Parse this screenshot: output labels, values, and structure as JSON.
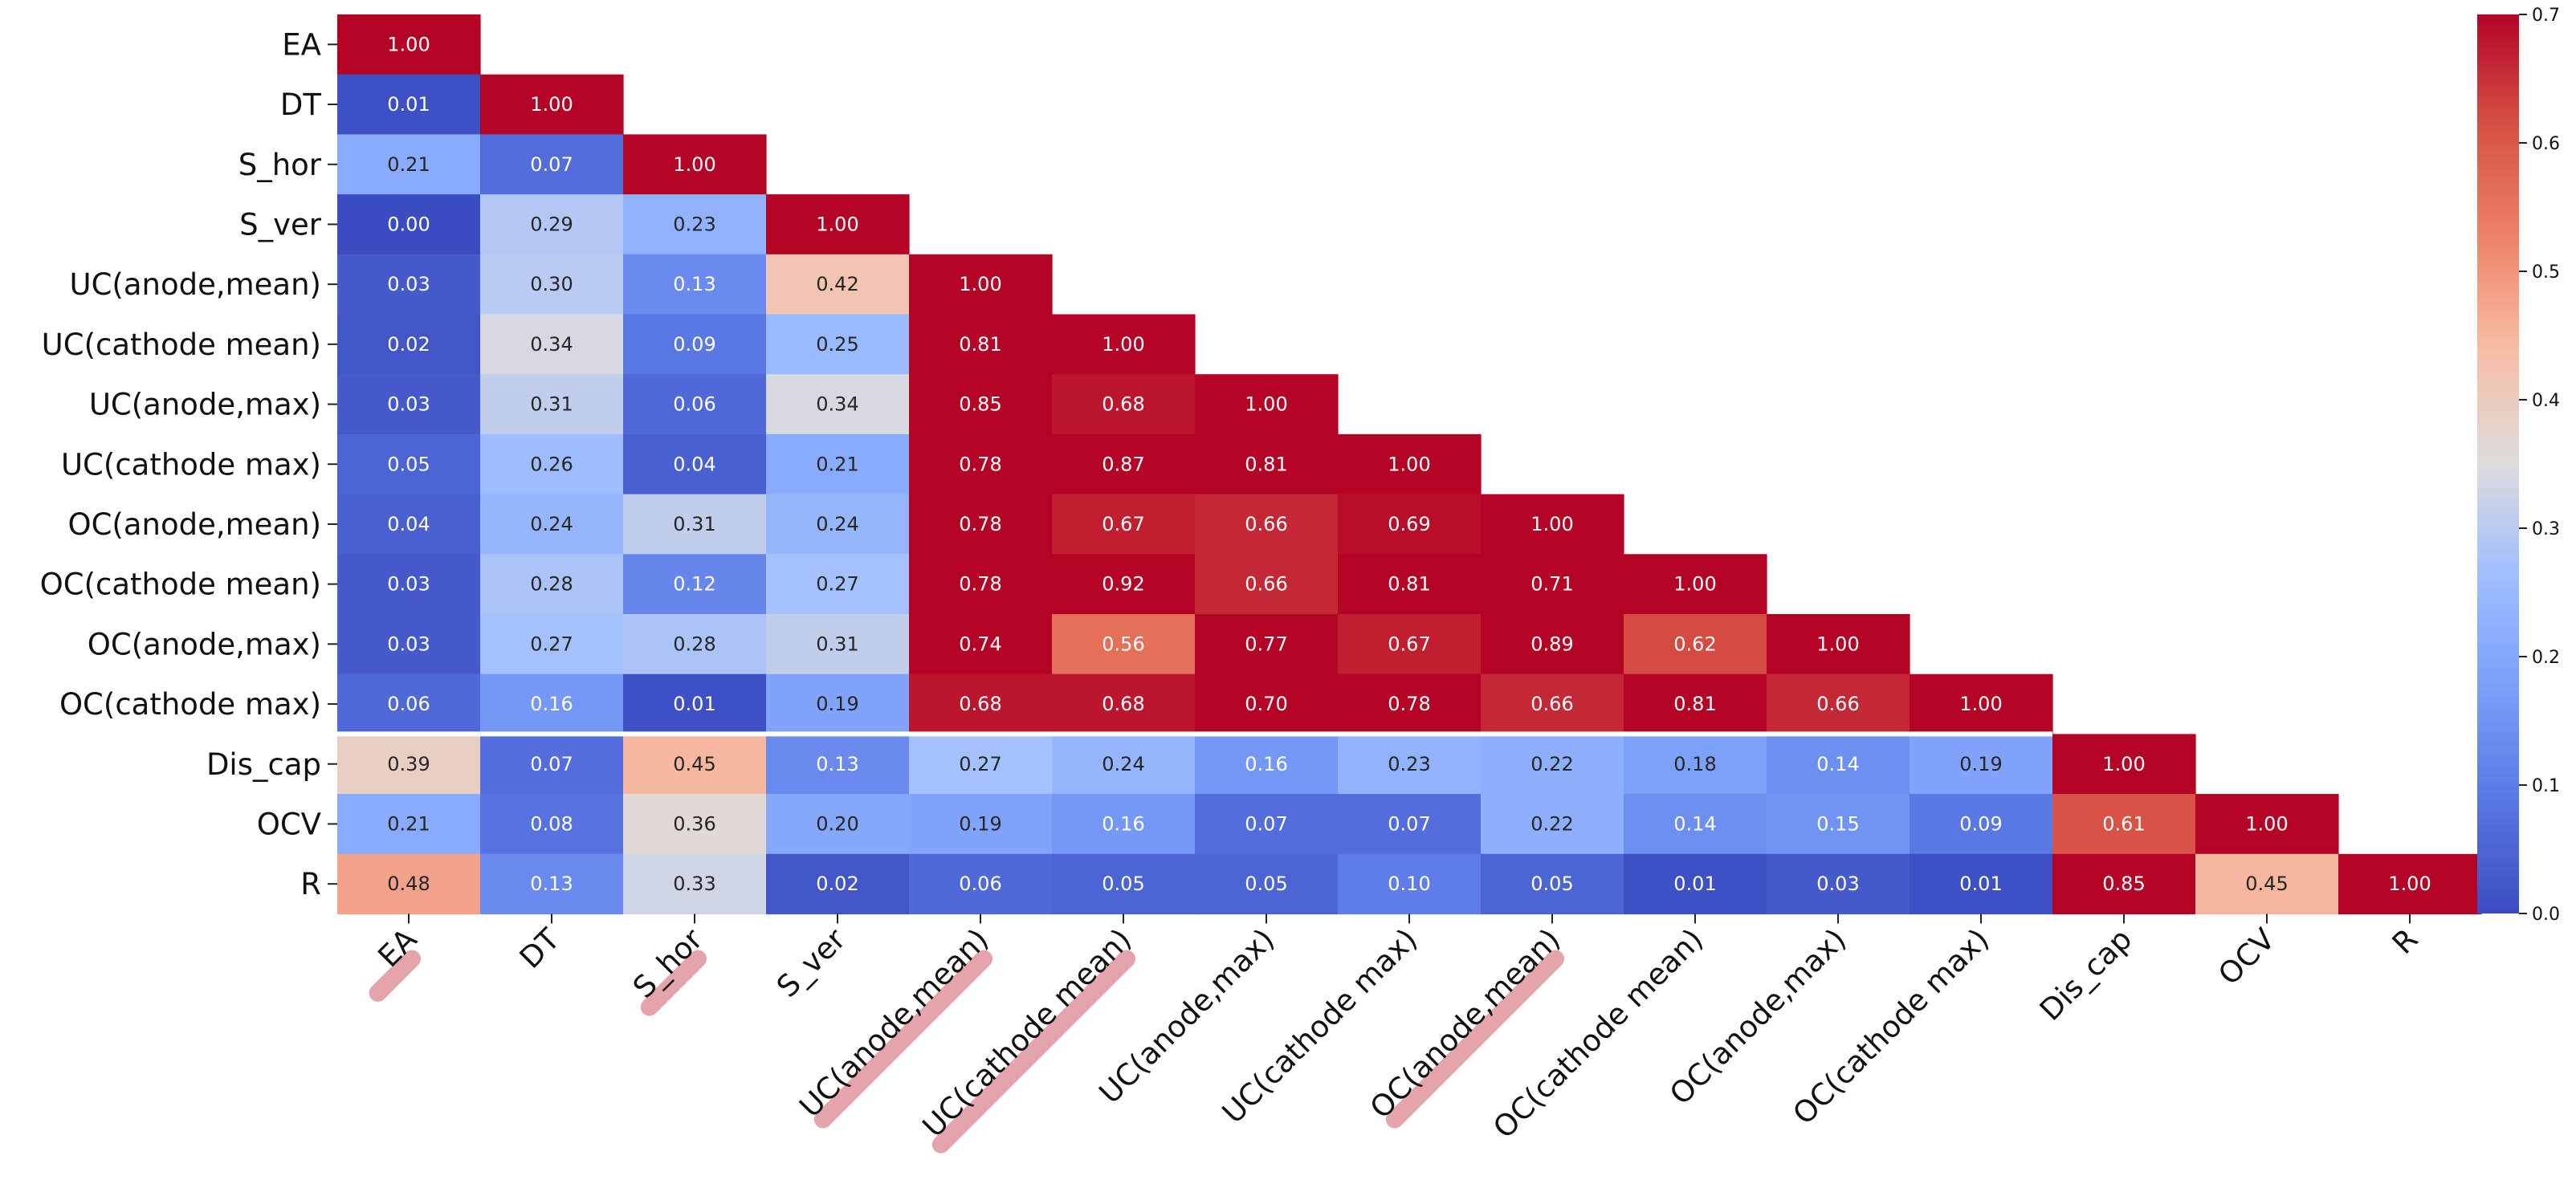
{
  "chart_data": {
    "type": "heatmap",
    "mask": "upper-triangle",
    "colormap": "coolwarm",
    "vmin": 0.0,
    "vmax": 0.7,
    "colorbar_ticks": [
      "0.0",
      "0.1",
      "0.2",
      "0.3",
      "0.4",
      "0.5",
      "0.6",
      "0.7"
    ],
    "colorbar_tick_values": [
      0.0,
      0.1,
      0.2,
      0.3,
      0.4,
      0.5,
      0.6,
      0.7
    ],
    "labels": [
      "EA",
      "DT",
      "S_hor",
      "S_ver",
      "UC(anode,mean)",
      "UC(cathode mean)",
      "UC(anode,max)",
      "UC(cathode max)",
      "OC(anode,mean)",
      "OC(cathode mean)",
      "OC(anode,max)",
      "OC(cathode max)",
      "Dis_cap",
      "OCV",
      "R"
    ],
    "highlighted_x_labels": [
      "EA",
      "S_hor",
      "UC(anode,mean)",
      "UC(cathode mean)",
      "OC(anode,mean)"
    ],
    "separator_after_row": "OC(cathode max)",
    "values": [
      [
        1.0
      ],
      [
        0.01,
        1.0
      ],
      [
        0.21,
        0.07,
        1.0
      ],
      [
        0.0,
        0.29,
        0.23,
        1.0
      ],
      [
        0.03,
        0.3,
        0.13,
        0.42,
        1.0
      ],
      [
        0.02,
        0.34,
        0.09,
        0.25,
        0.81,
        1.0
      ],
      [
        0.03,
        0.31,
        0.06,
        0.34,
        0.85,
        0.68,
        1.0
      ],
      [
        0.05,
        0.26,
        0.04,
        0.21,
        0.78,
        0.87,
        0.81,
        1.0
      ],
      [
        0.04,
        0.24,
        0.31,
        0.24,
        0.78,
        0.67,
        0.66,
        0.69,
        1.0
      ],
      [
        0.03,
        0.28,
        0.12,
        0.27,
        0.78,
        0.92,
        0.66,
        0.81,
        0.71,
        1.0
      ],
      [
        0.03,
        0.27,
        0.28,
        0.31,
        0.74,
        0.56,
        0.77,
        0.67,
        0.89,
        0.62,
        1.0
      ],
      [
        0.06,
        0.16,
        0.01,
        0.19,
        0.68,
        0.68,
        0.7,
        0.78,
        0.66,
        0.81,
        0.66,
        1.0
      ],
      [
        0.39,
        0.07,
        0.45,
        0.13,
        0.27,
        0.24,
        0.16,
        0.23,
        0.22,
        0.18,
        0.14,
        0.19,
        1.0
      ],
      [
        0.21,
        0.08,
        0.36,
        0.2,
        0.19,
        0.16,
        0.07,
        0.07,
        0.22,
        0.14,
        0.15,
        0.09,
        0.61,
        1.0
      ],
      [
        0.48,
        0.13,
        0.33,
        0.02,
        0.06,
        0.05,
        0.05,
        0.1,
        0.05,
        0.01,
        0.03,
        0.01,
        0.85,
        0.45,
        1.0
      ]
    ]
  }
}
